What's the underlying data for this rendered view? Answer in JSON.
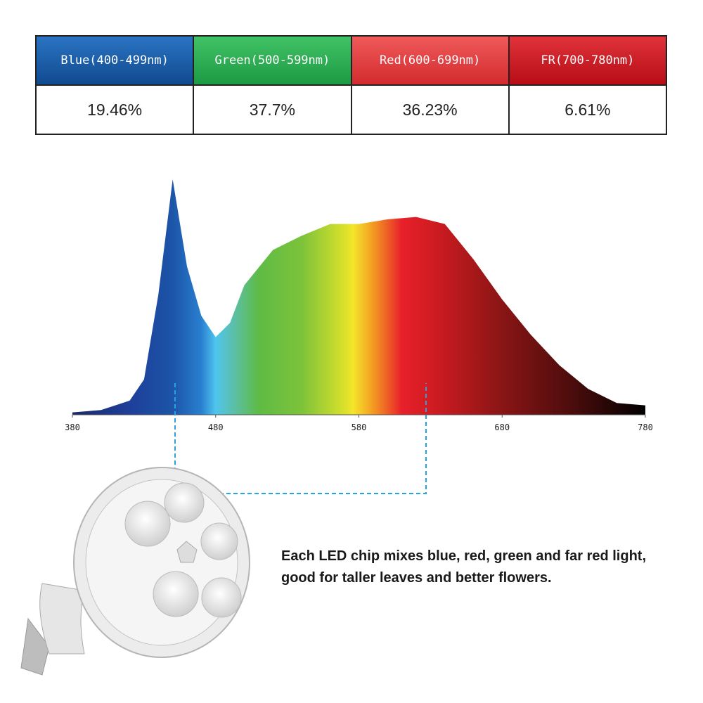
{
  "table": {
    "headers": [
      "Blue(400-499nm)",
      "Green(500-599nm)",
      "Red(600-699nm)",
      "FR(700-780nm)"
    ],
    "values": [
      "19.46%",
      "37.7%",
      "36.23%",
      "6.61%"
    ]
  },
  "chart_data": {
    "type": "area",
    "x": [
      380,
      400,
      420,
      430,
      440,
      450,
      460,
      470,
      480,
      490,
      500,
      520,
      540,
      560,
      580,
      600,
      620,
      640,
      660,
      680,
      700,
      720,
      740,
      760,
      780
    ],
    "values": [
      1,
      2,
      6,
      15,
      51,
      100,
      63,
      42,
      33,
      39,
      55,
      70,
      76,
      81,
      81,
      83,
      84,
      81,
      66,
      49,
      34,
      21,
      11,
      5,
      4
    ],
    "xlim": [
      380,
      780
    ],
    "xticks": [
      380,
      480,
      580,
      680,
      780
    ],
    "ylim": [
      0,
      100
    ]
  },
  "caption": "Each LED chip mixes blue, red, green and far red light, good for taller leaves and better flowers."
}
